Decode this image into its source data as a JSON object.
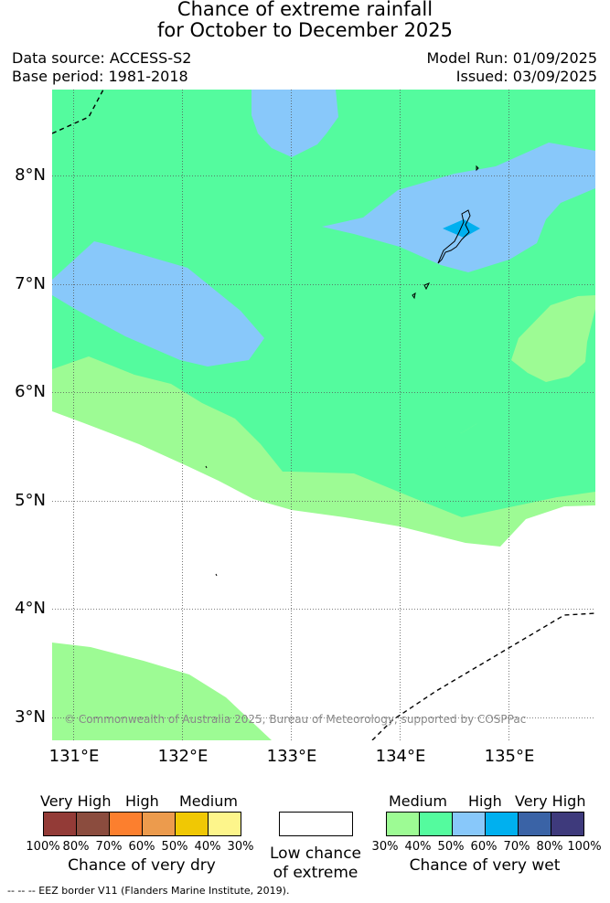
{
  "header": {
    "title_line1": "Chance of extreme rainfall",
    "title_line2": "for October to December 2025",
    "data_source": "Data source: ACCESS-S2",
    "base_period": "Base period: 1981-2018",
    "model_run": "Model Run: 01/09/2025",
    "issued": "Issued: 03/09/2025"
  },
  "map": {
    "latitude_labels": [
      "8°N",
      "7°N",
      "6°N",
      "5°N",
      "4°N",
      "3°N"
    ],
    "longitude_labels": [
      "131°E",
      "132°E",
      "133°E",
      "134°E",
      "135°E"
    ],
    "copyright": "© Commonwealth of Australia 2025, Bureau of Meteorology, supported by COSPPac",
    "extent": {
      "lon_min": 130.8,
      "lon_max": 135.8,
      "lat_min": 2.8,
      "lat_max": 8.8
    },
    "category_colors": {
      "wet_medium": "#9dfb94",
      "wet_medium_high": "#54fb9e",
      "wet_high": "#88c8fa",
      "wet_high_very": "#00b0ef",
      "land_outline": "#000000"
    }
  },
  "legend": {
    "dry": {
      "headings": [
        "Very High",
        "High",
        "Medium"
      ],
      "colors": [
        "#933b37",
        "#8b4c3e",
        "#fc7f2e",
        "#ec9b4d",
        "#f0c804",
        "#fdf58b"
      ],
      "percentages": [
        "100%",
        "80%",
        "70%",
        "60%",
        "50%",
        "40%",
        "30%"
      ],
      "caption": "Chance of very dry"
    },
    "low": {
      "color": "#ffffff",
      "caption_line1": "Low chance",
      "caption_line2": "of extreme"
    },
    "wet": {
      "headings": [
        "Medium",
        "High",
        "Very High"
      ],
      "colors": [
        "#9dfb94",
        "#54fb9e",
        "#88c8fa",
        "#00b0ef",
        "#3a63a6",
        "#3e3a7c"
      ],
      "percentages": [
        "30%",
        "40%",
        "50%",
        "60%",
        "70%",
        "80%",
        "100%"
      ],
      "caption": "Chance of very wet"
    }
  },
  "footer": {
    "eez_note": "--  --  -- EEZ border V11 (Flanders Marine Institute, 2019)."
  }
}
